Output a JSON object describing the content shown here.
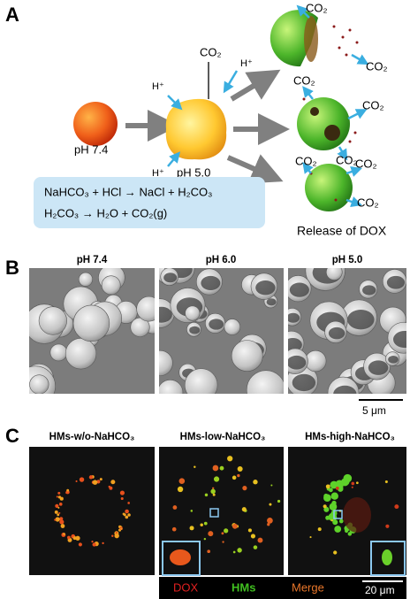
{
  "panels": {
    "a": {
      "label": "A",
      "co2_top": "CO₂",
      "protons": [
        "H⁺",
        "H⁺",
        "H⁺"
      ],
      "ph_start": "pH 7.4",
      "ph_acid": "pH 5.0",
      "reactions": [
        "NaHCO₃ + HCl → NaCl + H₂CO₃",
        "H₂CO₃ → H₂O + CO₂(g)"
      ],
      "co2_release": [
        "CO₂",
        "CO₂",
        "CO₂",
        "CO₂",
        "CO₂",
        "CO₂",
        "CO₂",
        "CO₂"
      ],
      "caption": "Release of DOX"
    },
    "b": {
      "label": "B",
      "images": [
        "pH 7.4",
        "pH 6.0",
        "pH 5.0"
      ],
      "scale_bar": "5 μm"
    },
    "c": {
      "label": "C",
      "images": [
        "HMs-w/o-NaHCO₃",
        "HMs-low-NaHCO₃",
        "HMs-high-NaHCO₃"
      ],
      "legend": [
        "DOX",
        "HMs",
        "Merge"
      ],
      "scale_bar": "20 μm"
    }
  }
}
